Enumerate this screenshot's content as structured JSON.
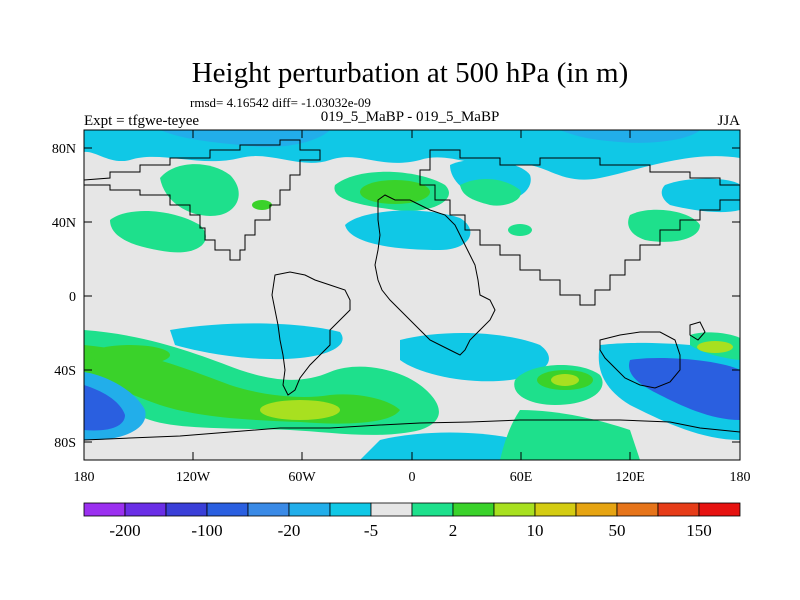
{
  "title": "Height perturbation at 500 hPa (in m)",
  "stats_line": "rmsd= 4.16542 diff= -1.03032e-09",
  "expt_label": "Expt = tfgwe-teyee",
  "comparison": "019_5_MaBP - 019_5_MaBP",
  "season": "JJA",
  "lat_ticks": [
    "80N",
    "40N",
    "0",
    "40S",
    "80S"
  ],
  "lon_ticks": [
    "180",
    "120W",
    "60W",
    "0",
    "60E",
    "120E",
    "180"
  ],
  "colorbar": {
    "colors": [
      "#9b30f0",
      "#6a2ee6",
      "#3a3fd8",
      "#2a5fe0",
      "#3a8ae6",
      "#22aeea",
      "#10c8e6",
      "#e6e6e6",
      "#1ee08c",
      "#3ad22a",
      "#a8e020",
      "#d4cc12",
      "#e6a412",
      "#e6741a",
      "#e63c18",
      "#e61210"
    ],
    "labels": [
      "-200",
      "-100",
      "-20",
      "-5",
      "2",
      "10",
      "50",
      "150"
    ]
  },
  "palette": {
    "background_field": "#e6e6e6",
    "land_outline": "#000000"
  }
}
